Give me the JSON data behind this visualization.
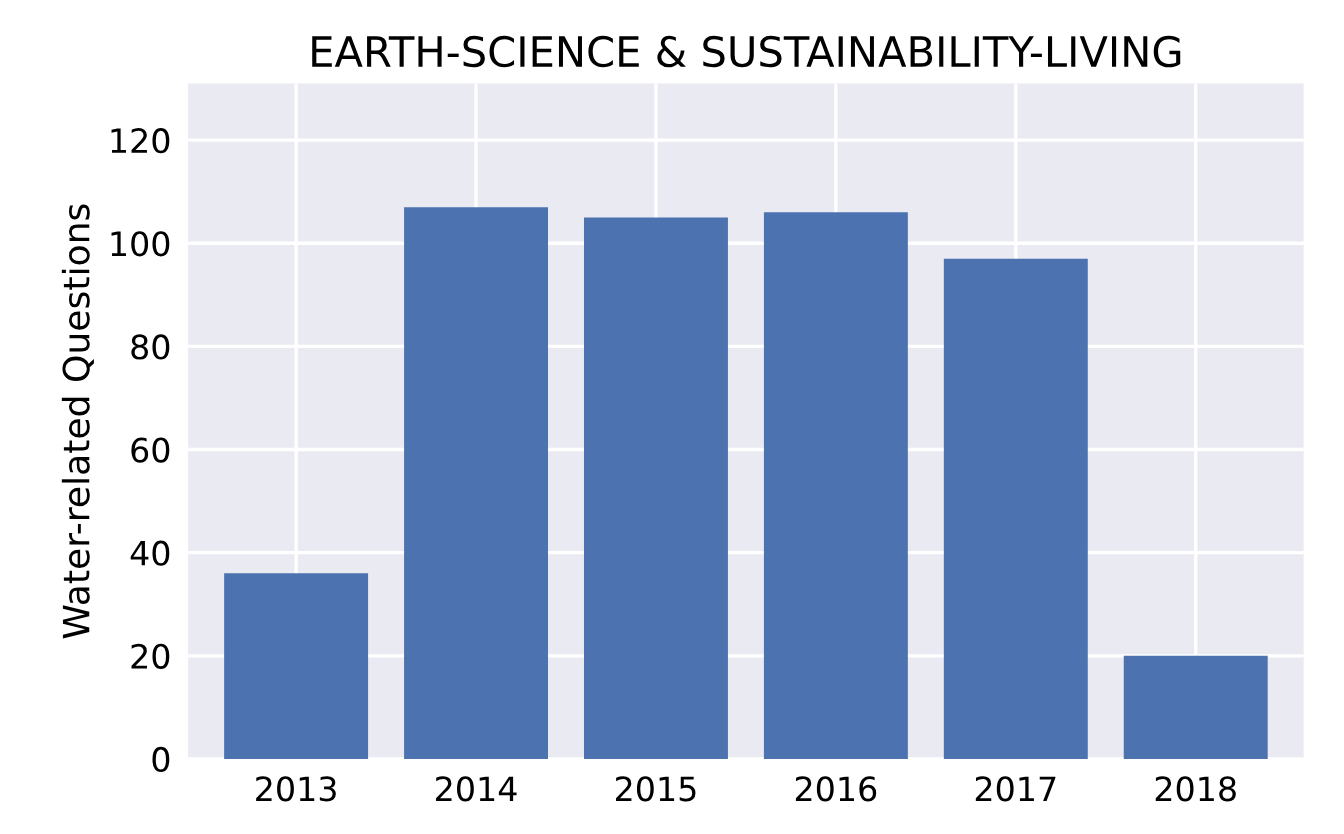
{
  "chart_data": {
    "type": "bar",
    "title": "EARTH-SCIENCE & SUSTAINABILITY-LIVING",
    "ylabel": "Water-related Questions",
    "categories": [
      "2013",
      "2014",
      "2015",
      "2016",
      "2017",
      "2018"
    ],
    "values": [
      36,
      107,
      105,
      106,
      97,
      20
    ],
    "color": "#4c72b0",
    "ylim": [
      0,
      131
    ],
    "yticks": [
      0,
      20,
      40,
      60,
      80,
      100,
      120
    ],
    "grid": true
  }
}
